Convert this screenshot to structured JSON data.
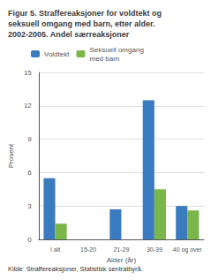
{
  "chart_data": {
    "type": "bar",
    "title": "Figur 5. Straffereaksjoner for voldtekt og\nseksuell omgang med barn, etter alder.\n2002-2005. Andel særreaksjoner",
    "xlabel": "Alder (år)",
    "ylabel": "Prosent",
    "annotations": [
      "Kilde: Straffereaksjoner, Statistisk sentralbyrå."
    ],
    "categories": [
      "I alt",
      "15-20",
      "21-29",
      "30-39",
      "40 og over"
    ],
    "series": [
      {
        "name": "Voldtekt",
        "color": "#3a7abf",
        "values": [
          5.5,
          0.0,
          2.7,
          12.5,
          3.0
        ]
      },
      {
        "name": "Seksuell omgang\nmed barn",
        "color": "#7ab648",
        "values": [
          1.4,
          0.0,
          0.0,
          4.5,
          2.6
        ]
      }
    ],
    "ylim": [
      0,
      15
    ],
    "yticks": [
      0,
      3,
      6,
      9,
      12,
      15
    ],
    "grid": true,
    "legend": "upper left"
  }
}
